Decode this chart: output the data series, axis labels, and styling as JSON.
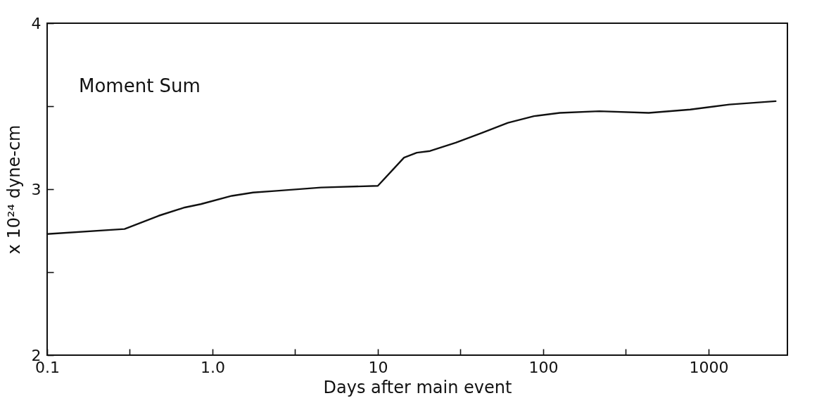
{
  "chart_data": {
    "type": "line",
    "xlabel": "Days after main event",
    "ylabel": "x 10²⁴ dyne-cm",
    "log": "x",
    "grid": false,
    "marker": "none",
    "line_style": "solid",
    "xlim": [
      0.1,
      3000
    ],
    "ylim": [
      2,
      4
    ],
    "xticks": [
      0.1,
      {
        "value": 0.316,
        "label": null
      },
      {
        "value": 1,
        "label": "1.0"
      },
      {
        "value": 3.16,
        "label": null
      },
      10,
      {
        "value": 31.6,
        "label": null
      },
      100,
      {
        "value": 316,
        "label": null
      },
      1000
    ],
    "yticks": [
      2,
      {
        "value": 2.5,
        "label": null
      },
      3,
      {
        "value": 3.5,
        "label": null
      },
      4
    ],
    "series": [
      {
        "name": "Moment Sum",
        "color": "#111111",
        "x": [
          0.1,
          0.294,
          0.473,
          0.68,
          0.85,
          1.31,
          1.76,
          2.44,
          4.53,
          10,
          14.4,
          17.2,
          20.7,
          29.6,
          42.7,
          61.2,
          88,
          126,
          218,
          435,
          776,
          1336,
          2547
        ],
        "values": [
          2.73,
          2.76,
          2.84,
          2.89,
          2.91,
          2.96,
          2.98,
          2.99,
          3.01,
          3.02,
          3.19,
          3.22,
          3.23,
          3.28,
          3.34,
          3.4,
          3.44,
          3.46,
          3.47,
          3.46,
          3.48,
          3.51,
          3.53
        ]
      }
    ]
  }
}
